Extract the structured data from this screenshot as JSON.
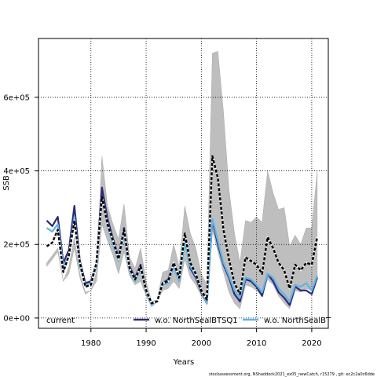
{
  "chart_data": {
    "type": "line",
    "title": "",
    "xlabel": "Years",
    "ylabel": "SSB",
    "xlim": [
      1970.5,
      2023
    ],
    "ylim": [
      -28000,
      760000
    ],
    "x_ticks": [
      1980,
      1990,
      2000,
      2010,
      2020
    ],
    "y_ticks": [
      0,
      200000,
      400000,
      600000
    ],
    "x_tick_labels": [
      "1980",
      "1990",
      "2000",
      "2010",
      "2020"
    ],
    "y_tick_labels": [
      "0e+00",
      "2e+05",
      "4e+05",
      "6e+05"
    ],
    "grid": true,
    "legend_position": "bottom",
    "x": [
      1972,
      1973,
      1974,
      1975,
      1976,
      1977,
      1978,
      1979,
      1980,
      1981,
      1982,
      1983,
      1984,
      1985,
      1986,
      1987,
      1988,
      1989,
      1990,
      1991,
      1992,
      1993,
      1994,
      1995,
      1996,
      1997,
      1998,
      1999,
      2000,
      2001,
      2002,
      2003,
      2004,
      2005,
      2006,
      2007,
      2008,
      2009,
      2010,
      2011,
      2012,
      2013,
      2014,
      2015,
      2016,
      2017,
      2018,
      2019,
      2020,
      2021
    ],
    "series": [
      {
        "name": "current",
        "color": "#000000",
        "style": "dashed-over-grey",
        "values": [
          195000,
          205000,
          240000,
          125000,
          170000,
          265000,
          150000,
          85000,
          90000,
          150000,
          330000,
          255000,
          210000,
          160000,
          240000,
          135000,
          105000,
          140000,
          75000,
          40000,
          45000,
          95000,
          100000,
          150000,
          110000,
          230000,
          150000,
          120000,
          75000,
          50000,
          440000,
          380000,
          240000,
          160000,
          95000,
          65000,
          165000,
          155000,
          145000,
          120000,
          220000,
          190000,
          150000,
          130000,
          80000,
          145000,
          130000,
          150000,
          145000,
          220000
        ],
        "band_upper": [
          150000,
          170000,
          190000,
          100000,
          140000,
          220000,
          120000,
          70000,
          75000,
          125000,
          440000,
          305000,
          255000,
          215000,
          310000,
          165000,
          135000,
          190000,
          100000,
          45000,
          50000,
          125000,
          130000,
          200000,
          140000,
          305000,
          230000,
          190000,
          120000,
          90000,
          720000,
          725000,
          560000,
          350000,
          230000,
          150000,
          265000,
          260000,
          275000,
          260000,
          400000,
          340000,
          295000,
          300000,
          195000,
          225000,
          200000,
          245000,
          245000,
          400000
        ],
        "band_lower": [
          140000,
          160000,
          180000,
          100000,
          120000,
          190000,
          110000,
          65000,
          75000,
          100000,
          255000,
          210000,
          170000,
          120000,
          180000,
          115000,
          90000,
          100000,
          60000,
          30000,
          45000,
          75000,
          80000,
          100000,
          80000,
          160000,
          110000,
          90000,
          60000,
          35000,
          240000,
          180000,
          125000,
          70000,
          40000,
          25000,
          90000,
          85000,
          75000,
          60000,
          105000,
          90000,
          60000,
          40000,
          25000,
          75000,
          70000,
          80000,
          75000,
          105000
        ]
      },
      {
        "name": "w.o. NorthSealBTSQ1",
        "color": "#2c2a7a",
        "values": [
          265000,
          250000,
          275000,
          150000,
          185000,
          305000,
          155000,
          95000,
          100000,
          150000,
          355000,
          270000,
          215000,
          165000,
          245000,
          140000,
          110000,
          145000,
          75000,
          38000,
          45000,
          95000,
          105000,
          150000,
          105000,
          215000,
          135000,
          110000,
          70000,
          42000,
          265000,
          200000,
          145000,
          110000,
          65000,
          45000,
          105000,
          100000,
          85000,
          60000,
          120000,
          100000,
          70000,
          55000,
          35000,
          85000,
          75000,
          75000,
          65000,
          110000
        ]
      },
      {
        "name": "w.o. NorthSealBT",
        "color": "#5fb4e8",
        "values": [
          245000,
          235000,
          255000,
          140000,
          170000,
          275000,
          140000,
          90000,
          95000,
          140000,
          330000,
          250000,
          200000,
          155000,
          230000,
          130000,
          100000,
          135000,
          70000,
          35000,
          45000,
          90000,
          95000,
          140000,
          100000,
          205000,
          140000,
          115000,
          75000,
          40000,
          270000,
          210000,
          150000,
          115000,
          75000,
          55000,
          110000,
          105000,
          90000,
          70000,
          120000,
          110000,
          80000,
          65000,
          45000,
          90000,
          85000,
          95000,
          75000,
          115000
        ]
      }
    ]
  },
  "footnote": "stockassessment.org, NShaddock2021_ex05_newCatch, r15279 , git: ec2c2a0c6dde"
}
